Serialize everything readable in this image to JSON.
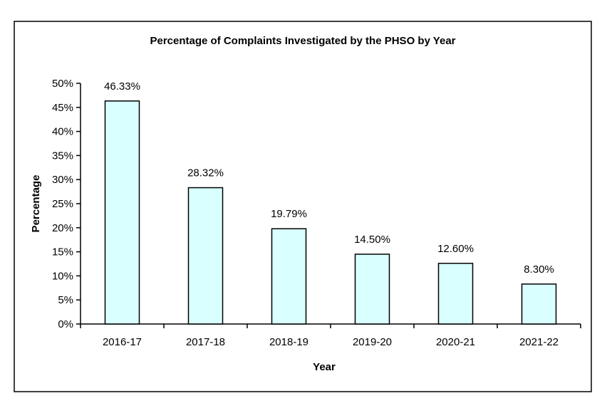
{
  "chart_data": {
    "type": "bar",
    "title": "Percentage of Complaints Investigated by the PHSO by Year",
    "xlabel": "Year",
    "ylabel": "Percentage",
    "categories": [
      "2016-17",
      "2017-18",
      "2018-19",
      "2019-20",
      "2020-21",
      "2021-22"
    ],
    "values": [
      46.33,
      28.32,
      19.79,
      14.5,
      12.6,
      8.3
    ],
    "data_labels": [
      "46.33%",
      "28.32%",
      "19.79%",
      "14.50%",
      "12.60%",
      "8.30%"
    ],
    "ylim": [
      0,
      50
    ],
    "yticks": [
      "0%",
      "5%",
      "10%",
      "15%",
      "20%",
      "25%",
      "30%",
      "35%",
      "40%",
      "45%",
      "50%"
    ],
    "grid": false,
    "bar_color": "#d9ffff"
  }
}
